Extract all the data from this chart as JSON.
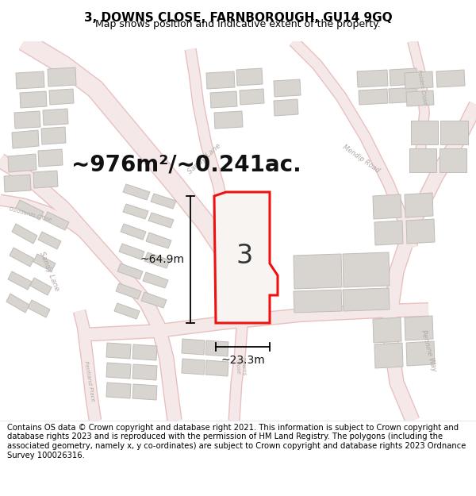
{
  "title": "3, DOWNS CLOSE, FARNBOROUGH, GU14 9GQ",
  "subtitle": "Map shows position and indicative extent of the property.",
  "area_label": "~976m²/~0.241ac.",
  "width_label": "~23.3m",
  "height_label": "~64.9m",
  "plot_number": "3",
  "footer": "Contains OS data © Crown copyright and database right 2021. This information is subject to Crown copyright and database rights 2023 and is reproduced with the permission of HM Land Registry. The polygons (including the associated geometry, namely x, y co-ordinates) are subject to Crown copyright and database rights 2023 Ordnance Survey 100026316.",
  "map_bg": "#f7f4f2",
  "header_bg": "#ffffff",
  "footer_bg": "#ffffff",
  "building_color": "#d8d4d0",
  "building_edge": "#c0bcb8",
  "highlight_color": "#ee1111",
  "highlight_fill": "#f8f4f2",
  "road_fill": "#f5e8e8",
  "road_edge": "#e8c0c0",
  "dim_color": "#111111",
  "road_label_color": "#b0a8a4",
  "title_fontsize": 11,
  "subtitle_fontsize": 9,
  "area_fontsize": 20,
  "footer_fontsize": 7.2,
  "plot_num_fontsize": 24
}
